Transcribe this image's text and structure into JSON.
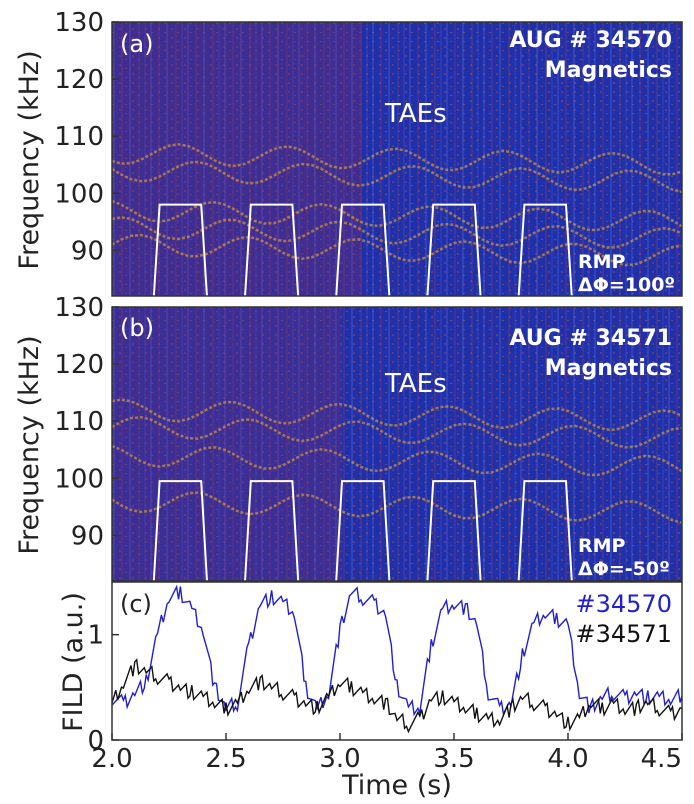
{
  "chart_data": [
    {
      "type": "heatmap",
      "panel_label": "(a)",
      "title_line1": "AUG # 34570",
      "title_line2": "Magnetics",
      "mode_label": "TAEs",
      "rmp_label": "RMP",
      "phase_label": "ΔΦ=100º",
      "ylabel": "Frequency (kHz)",
      "xlim": [
        2.0,
        4.5
      ],
      "ylim": [
        82,
        130
      ],
      "yticks": [
        "90",
        "100",
        "110",
        "120",
        "130"
      ],
      "ytick_values": [
        90,
        100,
        110,
        120,
        130
      ],
      "rmp_pulses": [
        [
          2.2,
          2.4
        ],
        [
          2.6,
          2.8
        ],
        [
          3.0,
          3.2
        ],
        [
          3.4,
          3.6
        ],
        [
          3.8,
          4.0
        ]
      ],
      "rmp_on_level_kHz": 98,
      "colors": {
        "background": "#1f2aa0",
        "mode": "#ffb020",
        "pulse": "#ffffff"
      }
    },
    {
      "type": "heatmap",
      "panel_label": "(b)",
      "title_line1": "AUG # 34571",
      "title_line2": "Magnetics",
      "mode_label": "TAEs",
      "rmp_label": "RMP",
      "phase_label": "ΔΦ=-50º",
      "ylabel": "Frequency (kHz)",
      "xlim": [
        2.0,
        4.5
      ],
      "ylim": [
        82,
        130
      ],
      "yticks": [
        "90",
        "100",
        "110",
        "120",
        "130"
      ],
      "ytick_values": [
        90,
        100,
        110,
        120,
        130
      ],
      "rmp_pulses": [
        [
          2.2,
          2.4
        ],
        [
          2.6,
          2.8
        ],
        [
          3.0,
          3.2
        ],
        [
          3.4,
          3.6
        ],
        [
          3.8,
          4.0
        ]
      ],
      "rmp_on_level_kHz": 99.5,
      "colors": {
        "background": "#1f2aa0",
        "mode": "#ffb020",
        "pulse": "#ffffff"
      }
    },
    {
      "type": "line",
      "panel_label": "(c)",
      "ylabel": "FILD (a.u.)",
      "xlabel": "Time (s)",
      "xlim": [
        2.0,
        4.5
      ],
      "ylim": [
        0,
        1.5
      ],
      "xticks": [
        "2.0",
        "2.5",
        "3.0",
        "3.5",
        "4.0",
        "4.5"
      ],
      "xtick_values": [
        2.0,
        2.5,
        3.0,
        3.5,
        4.0,
        4.5
      ],
      "yticks": [
        "0",
        "1"
      ],
      "ytick_values": [
        0,
        1
      ],
      "series": [
        {
          "name": "#34570",
          "color": "#2020d0",
          "x": [
            2.0,
            2.05,
            2.1,
            2.15,
            2.2,
            2.25,
            2.3,
            2.35,
            2.4,
            2.45,
            2.5,
            2.55,
            2.6,
            2.65,
            2.7,
            2.75,
            2.8,
            2.85,
            2.9,
            2.95,
            3.0,
            3.05,
            3.1,
            3.15,
            3.2,
            3.25,
            3.3,
            3.35,
            3.4,
            3.45,
            3.5,
            3.55,
            3.6,
            3.65,
            3.7,
            3.75,
            3.8,
            3.85,
            3.9,
            3.95,
            4.0,
            4.05,
            4.1,
            4.15,
            4.2,
            4.25,
            4.3,
            4.35,
            4.4,
            4.45,
            4.5
          ],
          "values": [
            0.4,
            0.35,
            0.45,
            0.55,
            1.0,
            1.35,
            1.4,
            1.25,
            1.05,
            0.5,
            0.3,
            0.35,
            0.9,
            1.3,
            1.35,
            1.3,
            1.2,
            0.5,
            0.3,
            0.45,
            1.05,
            1.4,
            1.35,
            1.3,
            1.2,
            0.5,
            0.3,
            0.3,
            0.9,
            1.25,
            1.3,
            1.25,
            1.1,
            0.45,
            0.3,
            0.35,
            0.8,
            1.1,
            1.2,
            1.15,
            1.1,
            0.45,
            0.3,
            0.4,
            0.45,
            0.4,
            0.45,
            0.4,
            0.4,
            0.38,
            0.42
          ]
        },
        {
          "name": "#34571",
          "color": "#111111",
          "x": [
            2.0,
            2.05,
            2.1,
            2.15,
            2.2,
            2.25,
            2.3,
            2.35,
            2.4,
            2.45,
            2.5,
            2.55,
            2.6,
            2.65,
            2.7,
            2.75,
            2.8,
            2.85,
            2.9,
            2.95,
            3.0,
            3.05,
            3.1,
            3.15,
            3.2,
            3.25,
            3.3,
            3.35,
            3.4,
            3.45,
            3.5,
            3.55,
            3.6,
            3.65,
            3.7,
            3.75,
            3.8,
            3.85,
            3.9,
            3.95,
            4.0,
            4.05,
            4.1,
            4.15,
            4.2,
            4.25,
            4.3,
            4.35,
            4.4,
            4.45,
            4.5
          ],
          "values": [
            0.35,
            0.55,
            0.7,
            0.65,
            0.6,
            0.55,
            0.5,
            0.45,
            0.4,
            0.35,
            0.3,
            0.35,
            0.5,
            0.55,
            0.5,
            0.45,
            0.4,
            0.35,
            0.3,
            0.4,
            0.55,
            0.5,
            0.45,
            0.4,
            0.35,
            0.2,
            0.15,
            0.2,
            0.4,
            0.4,
            0.35,
            0.3,
            0.25,
            0.2,
            0.2,
            0.3,
            0.4,
            0.35,
            0.3,
            0.25,
            0.15,
            0.2,
            0.35,
            0.3,
            0.35,
            0.3,
            0.3,
            0.35,
            0.3,
            0.25,
            0.3
          ]
        }
      ]
    }
  ]
}
